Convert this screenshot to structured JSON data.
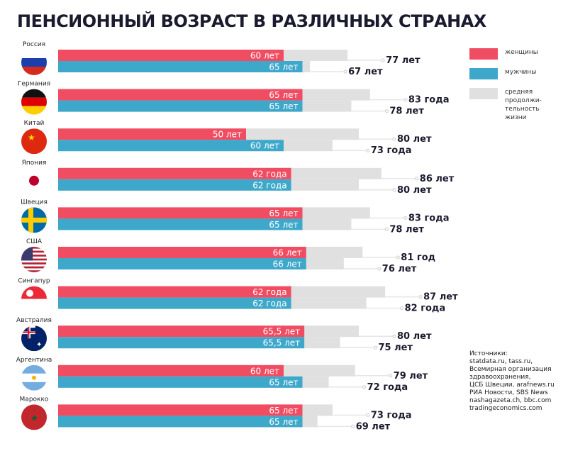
{
  "chart_data": {
    "type": "bar",
    "title": "ПЕНСИОННЫЙ ВОЗРАСТ В РАЗЛИЧНЫХ СТРАНАХ",
    "categories": [
      "Россия",
      "Германия",
      "Китай",
      "Япония",
      "Швеция",
      "США",
      "Сингапур",
      "Австралия",
      "Аргентина",
      "Марокко"
    ],
    "series": [
      {
        "name": "женщины",
        "color": "#f14d62",
        "values": [
          60,
          65,
          50,
          62,
          65,
          66,
          62,
          65.5,
          60,
          65
        ],
        "labels": [
          "60 лет",
          "65 лет",
          "50 лет",
          "62 года",
          "65 лет",
          "66 лет",
          "62 года",
          "65,5 лет",
          "60 лет",
          "65 лет"
        ]
      },
      {
        "name": "мужчины",
        "color": "#3ea8cb",
        "values": [
          65,
          65,
          60,
          62,
          65,
          66,
          62,
          65.5,
          65,
          65
        ],
        "labels": [
          "65 лет",
          "65 лет",
          "60 лет",
          "62 года",
          "65 лет",
          "66 лет",
          "62 года",
          "65,5 лет",
          "65 лет",
          "65 лет"
        ]
      }
    ],
    "life_expectancy": {
      "name": "средняя продолжи-тельность жизни",
      "color": "#e0e0e0",
      "women": [
        77,
        83,
        80,
        86,
        83,
        81,
        87,
        80,
        79,
        73
      ],
      "women_labels": [
        "77 лет",
        "83 года",
        "80 лет",
        "86 лет",
        "83 года",
        "81 год",
        "87 лет",
        "80 лет",
        "79 лет",
        "73 года"
      ],
      "men": [
        67,
        78,
        73,
        80,
        78,
        76,
        82,
        75,
        72,
        69
      ],
      "men_labels": [
        "67 лет",
        "78 лет",
        "73 года",
        "80 лет",
        "78 лет",
        "76 лет",
        "82 года",
        "75 лет",
        "72 года",
        "69 лет"
      ]
    },
    "legend_position": "right",
    "grid": false
  },
  "legend": {
    "women": "женщины",
    "men": "мужчины",
    "life": "средняя\nпродолжи-\nтельность\nжизни"
  },
  "sources": "Источники:\nstatdata.ru, tass.ru,\nВсемирная организация\nздравоохранения,\nЦСБ Швеции, arafnews.ru\nРИА Новости, SBS News\nnashagazeta.ch, bbc.com\ntradingeconomics.com",
  "flags": [
    "russia-flag",
    "germany-flag",
    "china-flag",
    "japan-flag",
    "sweden-flag",
    "usa-flag",
    "singapore-flag",
    "australia-flag",
    "argentina-flag",
    "morocco-flag"
  ]
}
